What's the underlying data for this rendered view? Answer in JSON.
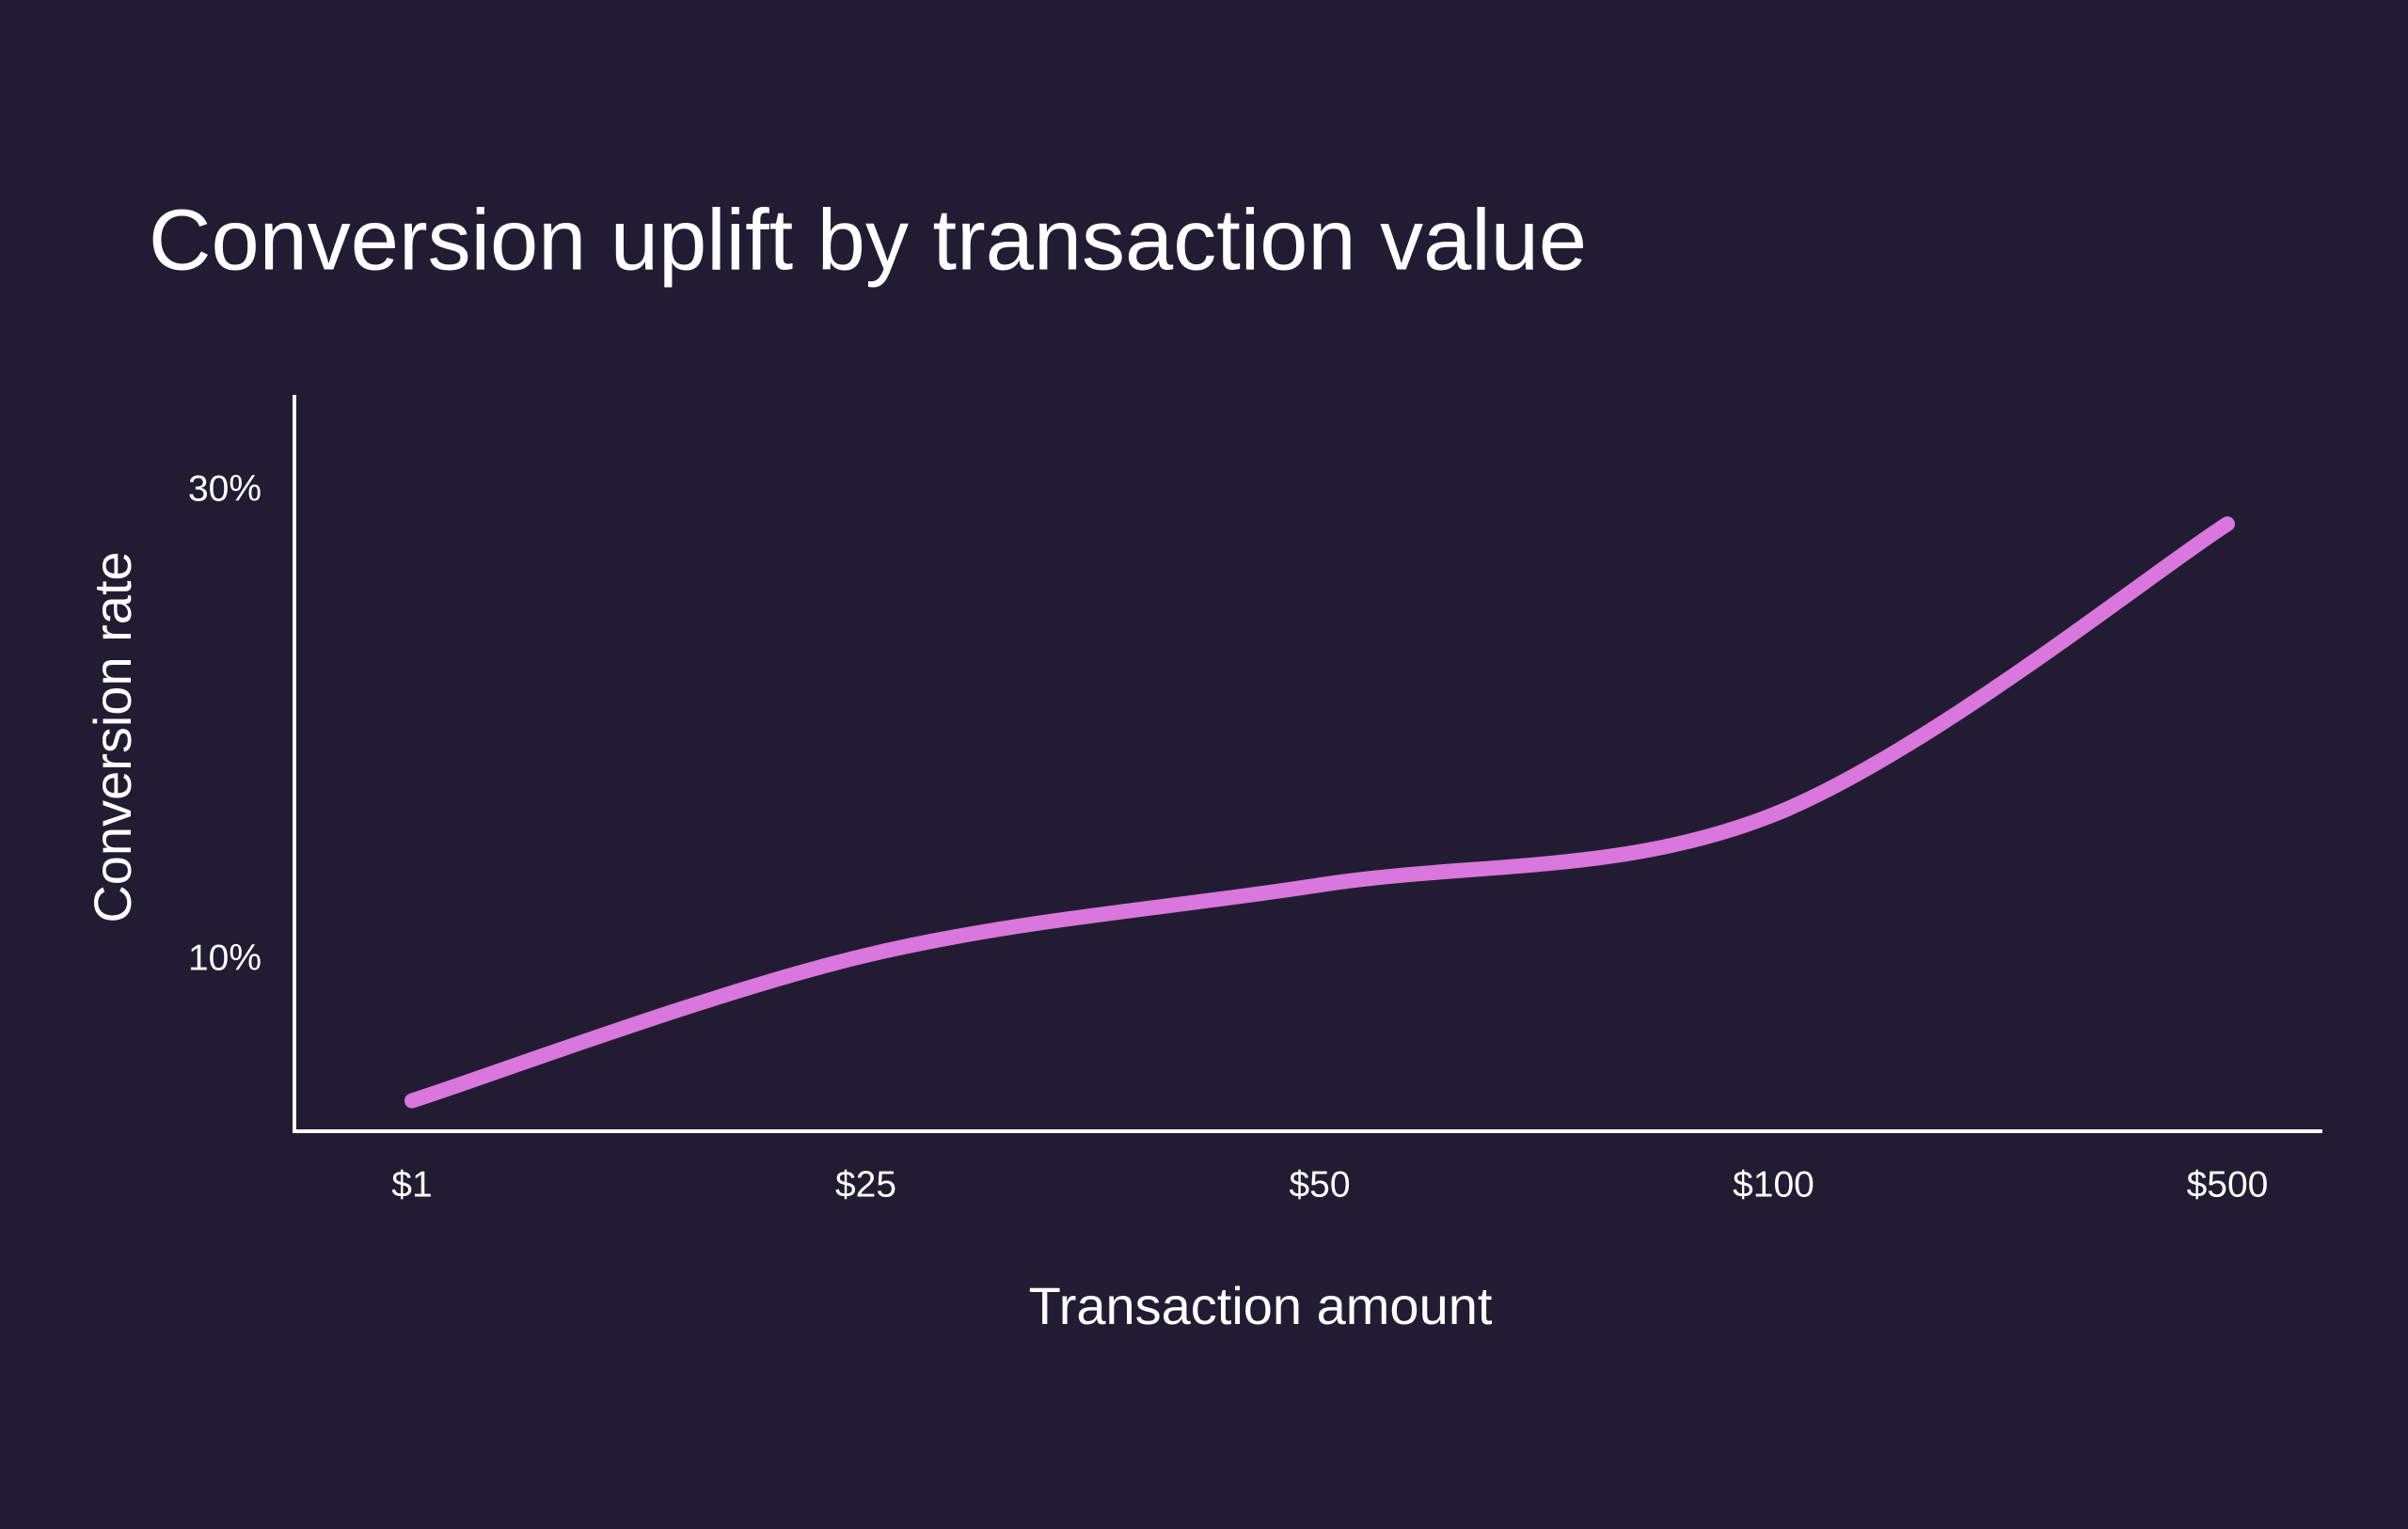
{
  "chart_data": {
    "type": "line",
    "title": "Conversion uplift by transaction value",
    "x_label": "Transaction amount",
    "y_label": "Conversion rate",
    "categories": [
      "$1",
      "$25",
      "$50",
      "$100",
      "$500"
    ],
    "values": [
      4.0,
      10.2,
      13.2,
      16.2,
      28.6
    ],
    "color": "#d977dc",
    "ylim": [
      2.7,
      34.1
    ],
    "yticks": [
      {
        "value": 10,
        "label": "10%"
      },
      {
        "value": 30,
        "label": "30%"
      }
    ],
    "grid": false
  }
}
